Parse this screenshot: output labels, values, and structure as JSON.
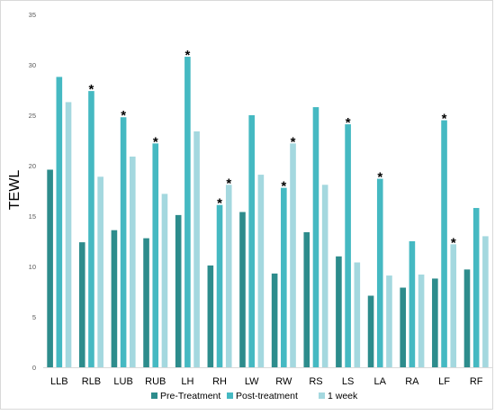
{
  "colors": {
    "pre_treatment": "#2d8c8c",
    "post_treatment": "#45b9c2",
    "one_week": "#a4d8df",
    "gridline": "#d9d9d9",
    "axis_text": "#595959"
  },
  "chart_data": {
    "type": "bar",
    "title": "",
    "xlabel": "",
    "ylabel": "TEWL",
    "ylim": [
      0,
      35
    ],
    "yticks": [
      0,
      5,
      10,
      15,
      20,
      25,
      30,
      35
    ],
    "grid": false,
    "legend_position": "bottom",
    "categories": [
      "LLB",
      "RLB",
      "LUB",
      "RUB",
      "LH",
      "RH",
      "LW",
      "RW",
      "RS",
      "LS",
      "LA",
      "RA",
      "LF",
      "RF"
    ],
    "series": [
      {
        "name": "Pre-Treatment",
        "color_key": "pre_treatment",
        "values": [
          19.6,
          12.4,
          13.6,
          12.8,
          15.1,
          10.1,
          15.4,
          9.3,
          13.4,
          11.0,
          7.1,
          7.9,
          8.8,
          9.7
        ]
      },
      {
        "name": "Post-treatment",
        "color_key": "post_treatment",
        "values": [
          28.8,
          27.4,
          24.8,
          22.2,
          30.8,
          16.1,
          25.0,
          17.8,
          25.8,
          24.1,
          18.7,
          12.5,
          24.5,
          15.8
        ]
      },
      {
        "name": "1 week",
        "color_key": "one_week",
        "values": [
          26.3,
          18.9,
          20.9,
          17.2,
          23.4,
          18.1,
          19.1,
          22.2,
          18.1,
          10.4,
          9.1,
          9.2,
          12.2,
          13.0
        ]
      }
    ],
    "annotations": [
      {
        "category": "RLB",
        "series": "Post-treatment",
        "text": "*"
      },
      {
        "category": "LUB",
        "series": "Post-treatment",
        "text": "*"
      },
      {
        "category": "RUB",
        "series": "Post-treatment",
        "text": "*"
      },
      {
        "category": "LH",
        "series": "Post-treatment",
        "text": "*"
      },
      {
        "category": "RH",
        "series": "Post-treatment",
        "text": "*"
      },
      {
        "category": "RH",
        "series": "1 week",
        "text": "*"
      },
      {
        "category": "RW",
        "series": "Post-treatment",
        "text": "*"
      },
      {
        "category": "RW",
        "series": "1 week",
        "text": "*"
      },
      {
        "category": "LS",
        "series": "Post-treatment",
        "text": "*"
      },
      {
        "category": "LA",
        "series": "Post-treatment",
        "text": "*"
      },
      {
        "category": "LF",
        "series": "Post-treatment",
        "text": "*"
      },
      {
        "category": "LF",
        "series": "1 week",
        "text": "*"
      }
    ]
  }
}
